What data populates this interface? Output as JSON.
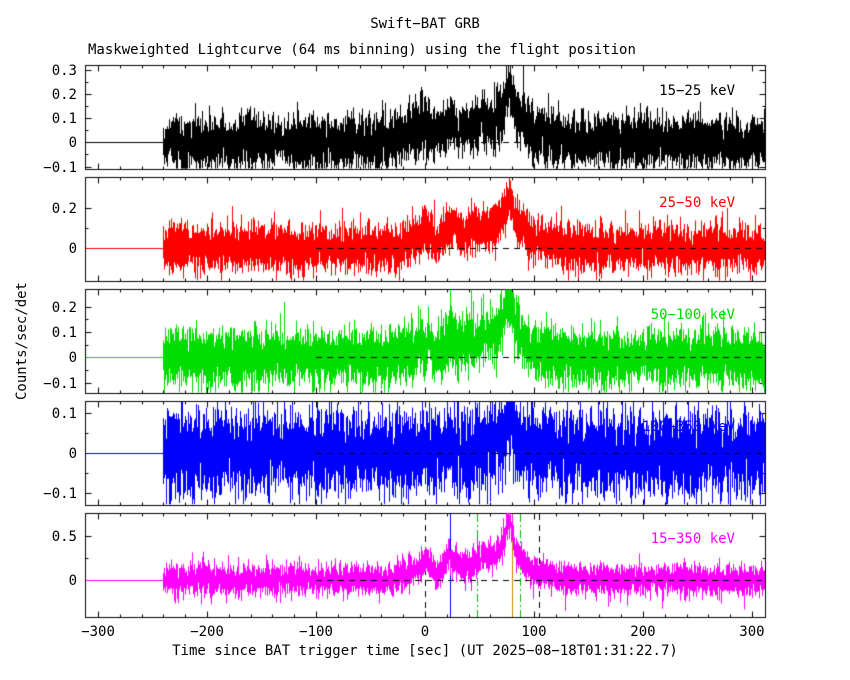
{
  "chart_data": {
    "type": "line",
    "title": "Swift−BAT GRB",
    "subtitle": "Maskweighted Lightcurve (64 ms binning) using the flight position",
    "xlabel": "Time since BAT trigger time [sec] (UT 2025−08−18T01:31:22.7)",
    "ylabel": "Counts/sec/det",
    "binning_ms": 64,
    "trigger_time_utc": "2025−08−18T01:31:22.7",
    "xlim": [
      -312,
      312
    ],
    "xticks": [
      -300,
      -200,
      -100,
      0,
      100,
      200,
      300
    ],
    "x_minor_step": 20,
    "data_start": -240,
    "data_end": 312,
    "zero_line": {
      "style": "dashed",
      "color": "#000000",
      "from": -100,
      "to": 312
    },
    "panels": [
      {
        "label": "15−25 keV",
        "color": "#000000",
        "ylim": [
          -0.11,
          0.32
        ],
        "yticks": [
          -0.1,
          0,
          0.1,
          0.2,
          0.3
        ],
        "baseline": 0,
        "noise_sigma": 0.055,
        "bursts": [
          {
            "t": -10,
            "w": 9,
            "a": 0.04
          },
          {
            "t": 1,
            "w": 5,
            "a": 0.06
          },
          {
            "t": 22,
            "w": 6,
            "a": 0.08
          },
          {
            "t": 36,
            "w": 6,
            "a": 0.04
          },
          {
            "t": 49,
            "w": 6,
            "a": 0.07
          },
          {
            "t": 61,
            "w": 6,
            "a": 0.07
          },
          {
            "t": 70,
            "w": 4,
            "a": 0.07
          },
          {
            "t": 77,
            "w": 3.5,
            "a": 0.18
          },
          {
            "t": 86,
            "w": 5,
            "a": 0.06
          },
          {
            "t": 97,
            "w": 18,
            "a": 0.035
          }
        ]
      },
      {
        "label": "25−50 keV",
        "color": "#ff0000",
        "ylim": [
          -0.16,
          0.35
        ],
        "yticks": [
          0,
          0.2
        ],
        "baseline": 0,
        "noise_sigma": 0.055,
        "bursts": [
          {
            "t": -10,
            "w": 9,
            "a": 0.04
          },
          {
            "t": 1,
            "w": 5,
            "a": 0.07
          },
          {
            "t": 22,
            "w": 6,
            "a": 0.11
          },
          {
            "t": 36,
            "w": 6,
            "a": 0.05
          },
          {
            "t": 49,
            "w": 6,
            "a": 0.08
          },
          {
            "t": 61,
            "w": 6,
            "a": 0.08
          },
          {
            "t": 70,
            "w": 4,
            "a": 0.08
          },
          {
            "t": 77,
            "w": 3.5,
            "a": 0.2
          },
          {
            "t": 86,
            "w": 5,
            "a": 0.07
          },
          {
            "t": 97,
            "w": 18,
            "a": 0.04
          }
        ]
      },
      {
        "label": "50−100 keV",
        "color": "#00dd00",
        "ylim": [
          -0.14,
          0.27
        ],
        "yticks": [
          -0.1,
          0,
          0.1,
          0.2
        ],
        "baseline": 0,
        "noise_sigma": 0.055,
        "bursts": [
          {
            "t": -10,
            "w": 9,
            "a": 0.03
          },
          {
            "t": 1,
            "w": 5,
            "a": 0.04
          },
          {
            "t": 22,
            "w": 6,
            "a": 0.07
          },
          {
            "t": 36,
            "w": 6,
            "a": 0.04
          },
          {
            "t": 49,
            "w": 6,
            "a": 0.06
          },
          {
            "t": 61,
            "w": 6,
            "a": 0.07
          },
          {
            "t": 70,
            "w": 4,
            "a": 0.08
          },
          {
            "t": 77,
            "w": 3.5,
            "a": 0.19
          },
          {
            "t": 86,
            "w": 5,
            "a": 0.06
          },
          {
            "t": 97,
            "w": 18,
            "a": 0.025
          }
        ]
      },
      {
        "label": "100−350 keV",
        "color": "#0000ff",
        "ylim": [
          -0.13,
          0.13
        ],
        "yticks": [
          -0.1,
          0,
          0.1
        ],
        "baseline": 0,
        "noise_sigma": 0.05,
        "bursts": [
          {
            "t": 22,
            "w": 6,
            "a": 0.02
          },
          {
            "t": 49,
            "w": 6,
            "a": 0.015
          },
          {
            "t": 61,
            "w": 6,
            "a": 0.025
          },
          {
            "t": 70,
            "w": 4,
            "a": 0.03
          },
          {
            "t": 77,
            "w": 3.5,
            "a": 0.06
          },
          {
            "t": 86,
            "w": 5,
            "a": 0.015
          },
          {
            "t": 97,
            "w": 18,
            "a": 0.01
          }
        ]
      },
      {
        "label": "15−350 keV",
        "color": "#ff00ff",
        "ylim": [
          -0.42,
          0.76
        ],
        "yticks": [
          0,
          0.5
        ],
        "baseline": 0,
        "noise_sigma": 0.085,
        "bursts": [
          {
            "t": -10,
            "w": 9,
            "a": 0.1
          },
          {
            "t": 1,
            "w": 5,
            "a": 0.17
          },
          {
            "t": 22,
            "w": 6,
            "a": 0.26
          },
          {
            "t": 36,
            "w": 6,
            "a": 0.12
          },
          {
            "t": 49,
            "w": 6,
            "a": 0.2
          },
          {
            "t": 61,
            "w": 6,
            "a": 0.22
          },
          {
            "t": 70,
            "w": 4,
            "a": 0.22
          },
          {
            "t": 77,
            "w": 3.5,
            "a": 0.52
          },
          {
            "t": 86,
            "w": 5,
            "a": 0.18
          },
          {
            "t": 97,
            "w": 18,
            "a": 0.08
          }
        ]
      }
    ],
    "bottom_panel_markers": [
      {
        "x": 0,
        "style": "dashed",
        "color": "#000000"
      },
      {
        "x": 23,
        "style": "solid",
        "color": "#0000ff"
      },
      {
        "x": 48,
        "style": "dashdot",
        "color": "#00bb00"
      },
      {
        "x": 80,
        "style": "solid",
        "color": "#cc8800"
      },
      {
        "x": 87,
        "style": "dashdot",
        "color": "#00bb00"
      },
      {
        "x": 105,
        "style": "dashed",
        "color": "#000000"
      }
    ]
  }
}
